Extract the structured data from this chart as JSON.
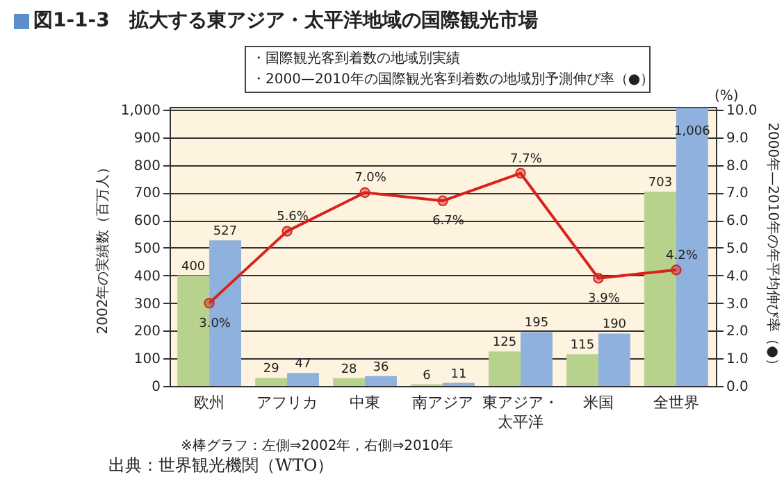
{
  "chart_data": {
    "type": "bar",
    "title": "図1-1-3　拡大する東アジア・太平洋地域の国際観光市場",
    "categories": [
      "欧州",
      "アフリカ",
      "中東",
      "南アジア",
      "東アジア・太平洋",
      "米国",
      "全世界"
    ],
    "series": [
      {
        "color": "#b7d28c",
        "values": [
          400,
          29,
          28,
          6,
          125,
          115,
          703
        ],
        "value_labels": [
          "400",
          "29",
          "28",
          "6",
          "125",
          "115",
          "703"
        ]
      },
      {
        "color": "#8fb1dd",
        "values": [
          527,
          47,
          36,
          11,
          195,
          190,
          1006
        ],
        "value_labels": [
          "527",
          "47",
          "36",
          "11",
          "195",
          "190",
          "1,006"
        ]
      },
      {
        "type": "line",
        "axis": "y2",
        "color": "#d8231c",
        "values": [
          3.0,
          5.6,
          7.0,
          6.7,
          7.7,
          3.9,
          4.2
        ],
        "value_labels": [
          "3.0%",
          "5.6%",
          "7.0%",
          "6.7%",
          "7.7%",
          "3.9%",
          "4.2%"
        ]
      }
    ],
    "ylabel": "2002年の実績数（百万人）",
    "y2label": "2000年—2010年の年平均伸び率（●）",
    "ylim": [
      0,
      1010
    ],
    "yticks": [
      0,
      100,
      200,
      300,
      400,
      500,
      600,
      700,
      800,
      900,
      {
        "value": 1000,
        "label": "1,000"
      }
    ],
    "y2lim": [
      0,
      10.1
    ],
    "y2ticks": [
      {
        "value": 0,
        "label": "0.0"
      },
      {
        "value": 1,
        "label": "1.0"
      },
      {
        "value": 2,
        "label": "2.0"
      },
      {
        "value": 3,
        "label": "3.0"
      },
      {
        "value": 4,
        "label": "4.0"
      },
      {
        "value": 5,
        "label": "5.0"
      },
      {
        "value": 6,
        "label": "6.0"
      },
      {
        "value": 7,
        "label": "7.0"
      },
      {
        "value": 8,
        "label": "8.0"
      },
      {
        "value": 9,
        "label": "9.0"
      },
      {
        "value": 10,
        "label": "10.0"
      }
    ],
    "grid": "y",
    "marker": "circle",
    "line_style": "solid",
    "annotations": [
      "・国際観光客到着数の地域別実績",
      "・2000—2010年の国際観光客到着数の地域別予測伸び率（●）",
      "(%)",
      "※棒グラフ：左側⇒2002年，右側⇒2010年",
      "出典：世界観光機関（WTO）"
    ]
  }
}
